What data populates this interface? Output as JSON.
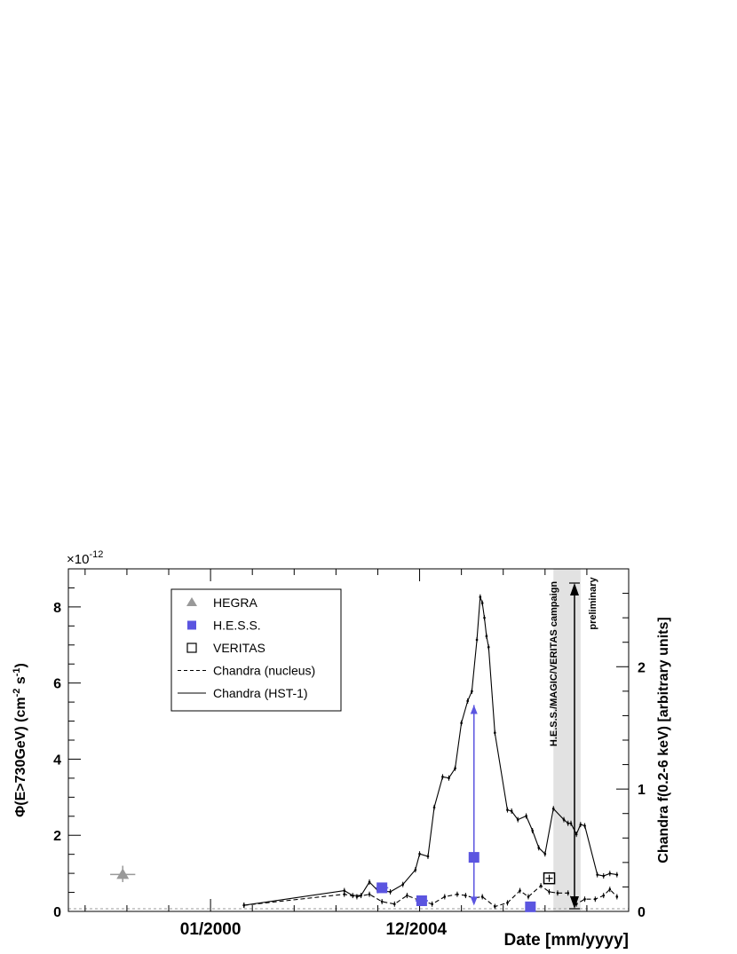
{
  "chart_data": {
    "type": "scatter",
    "x_axis": {
      "label": "Date [mm/yyyy]",
      "tick_labels": [
        "01/2000",
        "12/2004"
      ],
      "range_years": [
        1996.6,
        2010.0
      ]
    },
    "y_left": {
      "label_main": "Φ(E>730GeV) (cm",
      "label_sup1": "-2",
      "label_mid": " s",
      "label_sup2": "-1",
      "label_end": ")",
      "range": [
        0,
        9
      ],
      "ticks": [
        "0",
        "2",
        "4",
        "6",
        "8"
      ],
      "multiplier_base": "×10",
      "multiplier_exp": "-12"
    },
    "y_right": {
      "label": "Chandra f(0.2-6 keV) [arbitrary units]",
      "range": [
        0,
        2.8
      ],
      "ticks": [
        "0",
        "1",
        "2"
      ]
    },
    "legend": {
      "placement": "top-left",
      "entries": [
        "HEGRA",
        "H.E.S.S.",
        "VERITAS",
        "Chandra (nucleus)",
        "Chandra (HST-1)"
      ]
    },
    "annotations": {
      "campaign": "H.E.S.S./MAGIC/VERITAS campaign",
      "preliminary": "preliminary",
      "campaign_band_years": [
        2008.2,
        2008.85
      ]
    },
    "colors": {
      "hegra": "#999999",
      "hess": "#5b55e0",
      "veritas": "#000000",
      "band": "#e2e2e2",
      "axis": "#000000"
    },
    "series": [
      {
        "name": "HEGRA",
        "marker": "triangle",
        "points": [
          {
            "x": 1997.9,
            "y": 0.97,
            "ylo": 0.77,
            "yhi": 1.2,
            "xerr": 0.3
          }
        ]
      },
      {
        "name": "H.E.S.S.",
        "marker": "square",
        "points": [
          {
            "x": 2004.1,
            "y": 0.62,
            "ylo": 0.5,
            "yhi": 0.74,
            "xerr": 0.15
          },
          {
            "x": 2005.05,
            "y": 0.28,
            "ylo": 0.2,
            "yhi": 0.36,
            "xerr": 0.15
          },
          {
            "x": 2006.3,
            "y": 1.42,
            "ylo": 0.2,
            "yhi": 5.42,
            "xerr": 0.1,
            "upper_arrow": true
          },
          {
            "x": 2007.65,
            "y": 0.12,
            "ylo": 0.05,
            "yhi": 0.2,
            "xerr": 0.05
          }
        ]
      },
      {
        "name": "VERITAS",
        "marker": "open-square",
        "points": [
          {
            "x": 2008.1,
            "y": 0.87,
            "ylo": 0.75,
            "yhi": 0.99,
            "xerr": 0.0
          }
        ]
      },
      {
        "name": "Chandra (HST-1)",
        "style": "solid",
        "axis": "right",
        "points": [
          [
            2000.8,
            0.05
          ],
          [
            2003.2,
            0.17
          ],
          [
            2003.4,
            0.13
          ],
          [
            2003.6,
            0.13
          ],
          [
            2003.8,
            0.24
          ],
          [
            2004.0,
            0.17
          ],
          [
            2004.3,
            0.16
          ],
          [
            2004.6,
            0.22
          ],
          [
            2004.9,
            0.34
          ],
          [
            2005.0,
            0.47
          ],
          [
            2005.2,
            0.45
          ],
          [
            2005.35,
            0.85
          ],
          [
            2005.55,
            1.1
          ],
          [
            2005.7,
            1.09
          ],
          [
            2005.85,
            1.17
          ],
          [
            2006.0,
            1.54
          ],
          [
            2006.15,
            1.72
          ],
          [
            2006.25,
            1.8
          ],
          [
            2006.37,
            2.22
          ],
          [
            2006.45,
            2.57
          ],
          [
            2006.5,
            2.52
          ],
          [
            2006.55,
            2.4
          ],
          [
            2006.6,
            2.25
          ],
          [
            2006.65,
            2.16
          ],
          [
            2006.8,
            1.46
          ],
          [
            2007.1,
            0.83
          ],
          [
            2007.2,
            0.82
          ],
          [
            2007.35,
            0.75
          ],
          [
            2007.55,
            0.78
          ],
          [
            2007.7,
            0.66
          ],
          [
            2007.85,
            0.52
          ],
          [
            2008.0,
            0.47
          ],
          [
            2008.2,
            0.84
          ],
          [
            2008.45,
            0.75
          ],
          [
            2008.55,
            0.72
          ],
          [
            2008.62,
            0.72
          ],
          [
            2008.75,
            0.63
          ],
          [
            2008.85,
            0.71
          ],
          [
            2008.95,
            0.7
          ],
          [
            2009.25,
            0.3
          ],
          [
            2009.4,
            0.29
          ],
          [
            2009.55,
            0.31
          ],
          [
            2009.72,
            0.3
          ]
        ]
      },
      {
        "name": "Chandra (nucleus)",
        "style": "dashed",
        "axis": "right",
        "points": [
          [
            2000.8,
            0.05
          ],
          [
            2003.2,
            0.14
          ],
          [
            2003.5,
            0.12
          ],
          [
            2003.8,
            0.14
          ],
          [
            2004.1,
            0.08
          ],
          [
            2004.4,
            0.06
          ],
          [
            2004.7,
            0.13
          ],
          [
            2005.0,
            0.09
          ],
          [
            2005.3,
            0.06
          ],
          [
            2005.6,
            0.12
          ],
          [
            2005.9,
            0.14
          ],
          [
            2006.1,
            0.13
          ],
          [
            2006.3,
            0.11
          ],
          [
            2006.5,
            0.12
          ],
          [
            2006.8,
            0.04
          ],
          [
            2007.1,
            0.07
          ],
          [
            2007.4,
            0.17
          ],
          [
            2007.6,
            0.12
          ],
          [
            2007.9,
            0.21
          ],
          [
            2008.1,
            0.16
          ],
          [
            2008.3,
            0.15
          ],
          [
            2008.55,
            0.15
          ],
          [
            2008.75,
            0.06
          ],
          [
            2008.95,
            0.1
          ],
          [
            2009.2,
            0.1
          ],
          [
            2009.4,
            0.13
          ],
          [
            2009.55,
            0.18
          ],
          [
            2009.72,
            0.12
          ]
        ]
      }
    ]
  }
}
